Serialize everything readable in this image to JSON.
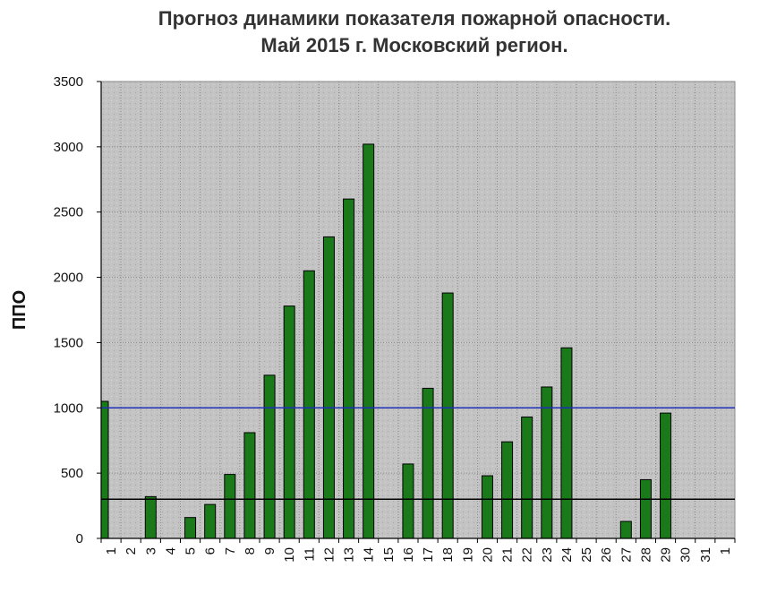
{
  "chart_data": {
    "type": "bar",
    "title": [
      "Прогноз динамики показателя пожарной опасности.",
      "Май 2015 г. Московский регион."
    ],
    "ylabel": "ППО",
    "xlabel": "",
    "ylim": [
      0,
      3500
    ],
    "yticks": [
      0,
      500,
      1000,
      1500,
      2000,
      2500,
      3000,
      3500
    ],
    "categories": [
      "1",
      "2",
      "3",
      "4",
      "5",
      "6",
      "7",
      "8",
      "9",
      "10",
      "11",
      "12",
      "13",
      "14",
      "15",
      "16",
      "17",
      "18",
      "19",
      "20",
      "21",
      "22",
      "23",
      "24",
      "25",
      "26",
      "27",
      "28",
      "29",
      "30",
      "31",
      "1"
    ],
    "values": [
      1050,
      0,
      320,
      0,
      160,
      260,
      490,
      810,
      1250,
      1780,
      2050,
      2310,
      2600,
      3020,
      0,
      570,
      1150,
      1880,
      0,
      480,
      740,
      930,
      1160,
      1460,
      0,
      0,
      130,
      450,
      960,
      0,
      0,
      0
    ],
    "reference_lines": [
      {
        "value": 1000,
        "color": "#1f2fb8"
      },
      {
        "value": 300,
        "color": "#000000"
      }
    ],
    "grid": true,
    "bar_color": "#1a7a1a",
    "bar_edge_color": "#000000",
    "plot_background": "#c0c0c0"
  }
}
